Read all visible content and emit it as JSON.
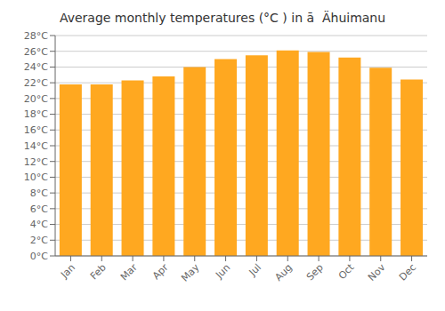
{
  "chart_data": {
    "type": "bar",
    "title": "Average monthly temperatures (°C ) in ā  Ähuimanu",
    "categories": [
      "Jan",
      "Feb",
      "Mar",
      "Apr",
      "May",
      "Jun",
      "Jul",
      "Aug",
      "Sep",
      "Oct",
      "Nov",
      "Dec"
    ],
    "values": [
      21.8,
      21.8,
      22.3,
      22.8,
      24.0,
      25.0,
      25.5,
      26.1,
      25.9,
      25.2,
      23.9,
      22.4
    ],
    "color": "#FFA820",
    "ylim": [
      0,
      28
    ],
    "yticks": [
      {
        "value": 0,
        "label": "0°C"
      },
      {
        "value": 2,
        "label": "2°C"
      },
      {
        "value": 4,
        "label": "4°C"
      },
      {
        "value": 6,
        "label": "6°C"
      },
      {
        "value": 8,
        "label": "8°C"
      },
      {
        "value": 10,
        "label": "10°C"
      },
      {
        "value": 12,
        "label": "12°C"
      },
      {
        "value": 14,
        "label": "14°C"
      },
      {
        "value": 16,
        "label": "16°C"
      },
      {
        "value": 18,
        "label": "18°C"
      },
      {
        "value": 20,
        "label": "20°C"
      },
      {
        "value": 22,
        "label": "22°C"
      },
      {
        "value": 24,
        "label": "24°C"
      },
      {
        "value": 26,
        "label": "26°C"
      },
      {
        "value": 28,
        "label": "28°C"
      }
    ],
    "grid": true
  }
}
